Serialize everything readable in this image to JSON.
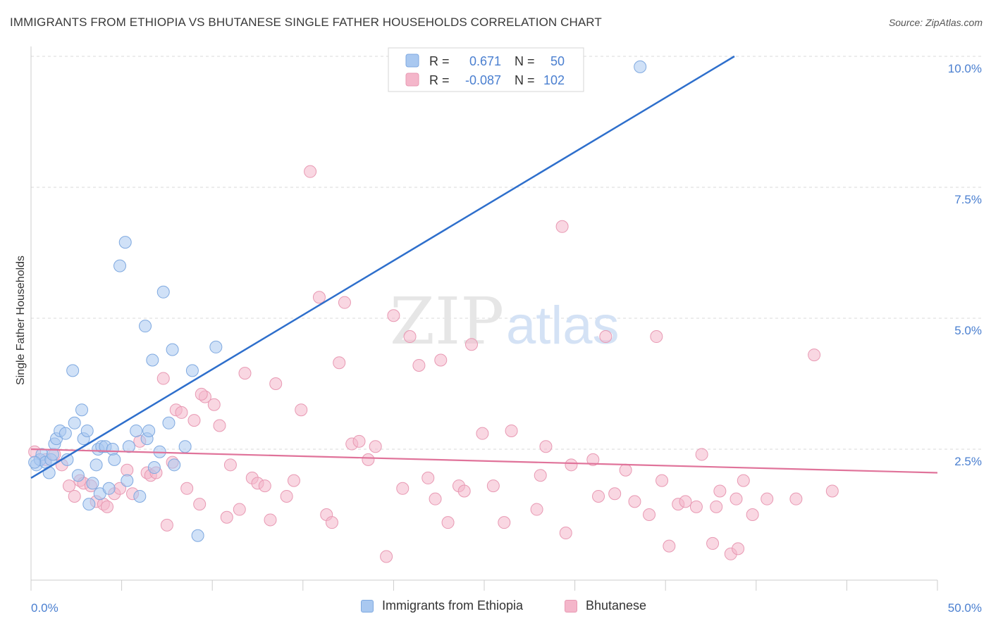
{
  "header": {
    "title": "IMMIGRANTS FROM ETHIOPIA VS BHUTANESE SINGLE FATHER HOUSEHOLDS CORRELATION CHART",
    "source": "Source: ZipAtlas.com"
  },
  "watermark": {
    "zip": "ZIP",
    "atlas": "atlas"
  },
  "colors": {
    "blue": "#4a7fd0",
    "blue_fill": "#a9c8f0",
    "blue_line": "#2e6fcc",
    "pink_fill": "#f4b6ca",
    "pink_line": "#e0739a",
    "grid": "#d9d9d9"
  },
  "legend_top": {
    "rows": [
      {
        "r_label": "R =",
        "r_value": "0.671",
        "n_label": "N =",
        "n_value": "50"
      },
      {
        "r_label": "R =",
        "r_value": "-0.087",
        "n_label": "N =",
        "n_value": "102"
      }
    ]
  },
  "legend_bottom": {
    "items": [
      {
        "label": "Immigrants from Ethiopia"
      },
      {
        "label": "Bhutanese"
      }
    ]
  },
  "chart_data": {
    "type": "scatter",
    "title": "IMMIGRANTS FROM ETHIOPIA VS BHUTANESE SINGLE FATHER HOUSEHOLDS CORRELATION CHART",
    "xlabel": "",
    "ylabel": "Single Father Households",
    "xlim": [
      0,
      50
    ],
    "ylim": [
      0,
      10
    ],
    "x_tick_labels": {
      "min": "0.0%",
      "max": "50.0%"
    },
    "y_ticks": [
      2.5,
      5.0,
      7.5,
      10.0
    ],
    "y_tick_labels": [
      "2.5%",
      "5.0%",
      "7.5%",
      "10.0%"
    ],
    "grid": true,
    "legend_position": "top-center",
    "series": [
      {
        "name": "Immigrants from Ethiopia",
        "color": "#a9c8f0",
        "trend": {
          "x": [
            0,
            38.8
          ],
          "y": [
            1.95,
            10.0
          ]
        },
        "points": [
          [
            0.3,
            2.2
          ],
          [
            0.5,
            2.3
          ],
          [
            0.6,
            2.4
          ],
          [
            0.8,
            2.25
          ],
          [
            1.0,
            2.05
          ],
          [
            1.1,
            2.3
          ],
          [
            1.2,
            2.4
          ],
          [
            1.3,
            2.6
          ],
          [
            1.4,
            2.7
          ],
          [
            1.6,
            2.85
          ],
          [
            1.9,
            2.8
          ],
          [
            2.0,
            2.3
          ],
          [
            2.3,
            4.0
          ],
          [
            2.4,
            3.0
          ],
          [
            2.6,
            2.0
          ],
          [
            2.8,
            3.25
          ],
          [
            2.9,
            2.7
          ],
          [
            3.1,
            2.85
          ],
          [
            3.2,
            1.45
          ],
          [
            3.4,
            1.85
          ],
          [
            3.6,
            2.2
          ],
          [
            3.7,
            2.5
          ],
          [
            3.8,
            1.65
          ],
          [
            3.9,
            2.55
          ],
          [
            4.1,
            2.55
          ],
          [
            4.3,
            1.75
          ],
          [
            4.5,
            2.5
          ],
          [
            4.6,
            2.3
          ],
          [
            4.9,
            6.0
          ],
          [
            5.2,
            6.45
          ],
          [
            5.3,
            1.9
          ],
          [
            5.4,
            2.55
          ],
          [
            5.8,
            2.85
          ],
          [
            6.0,
            1.6
          ],
          [
            6.3,
            4.85
          ],
          [
            6.4,
            2.7
          ],
          [
            6.5,
            2.85
          ],
          [
            6.7,
            4.2
          ],
          [
            6.8,
            2.15
          ],
          [
            7.1,
            2.45
          ],
          [
            7.3,
            5.5
          ],
          [
            7.6,
            3.0
          ],
          [
            7.8,
            4.4
          ],
          [
            7.9,
            2.2
          ],
          [
            8.5,
            2.55
          ],
          [
            8.9,
            4.0
          ],
          [
            9.2,
            0.85
          ],
          [
            10.2,
            4.45
          ],
          [
            33.6,
            9.8
          ],
          [
            0.2,
            2.25
          ]
        ]
      },
      {
        "name": "Bhutanese",
        "color": "#f4b6ca",
        "trend": {
          "x": [
            0,
            50
          ],
          "y": [
            2.5,
            2.05
          ]
        },
        "points": [
          [
            0.2,
            2.45
          ],
          [
            0.8,
            2.3
          ],
          [
            1.3,
            2.4
          ],
          [
            1.7,
            2.2
          ],
          [
            2.1,
            1.8
          ],
          [
            2.4,
            1.6
          ],
          [
            2.7,
            1.9
          ],
          [
            2.9,
            1.85
          ],
          [
            3.3,
            1.8
          ],
          [
            3.6,
            1.5
          ],
          [
            4.0,
            1.45
          ],
          [
            4.2,
            1.4
          ],
          [
            4.6,
            1.65
          ],
          [
            4.9,
            1.75
          ],
          [
            5.3,
            2.1
          ],
          [
            5.6,
            1.65
          ],
          [
            6.0,
            2.65
          ],
          [
            6.4,
            2.05
          ],
          [
            6.6,
            2.0
          ],
          [
            6.9,
            2.05
          ],
          [
            7.3,
            3.85
          ],
          [
            7.5,
            1.05
          ],
          [
            7.8,
            2.25
          ],
          [
            8.0,
            3.25
          ],
          [
            8.3,
            3.2
          ],
          [
            8.6,
            1.75
          ],
          [
            9.0,
            3.05
          ],
          [
            9.3,
            1.45
          ],
          [
            9.6,
            3.5
          ],
          [
            10.1,
            3.35
          ],
          [
            10.4,
            2.95
          ],
          [
            10.8,
            1.2
          ],
          [
            11.0,
            2.2
          ],
          [
            11.5,
            1.35
          ],
          [
            11.8,
            3.95
          ],
          [
            12.2,
            1.95
          ],
          [
            12.5,
            1.85
          ],
          [
            12.9,
            1.8
          ],
          [
            13.2,
            1.15
          ],
          [
            13.5,
            3.75
          ],
          [
            14.1,
            1.6
          ],
          [
            14.5,
            1.9
          ],
          [
            14.9,
            3.25
          ],
          [
            15.4,
            7.8
          ],
          [
            15.9,
            5.4
          ],
          [
            16.3,
            1.25
          ],
          [
            16.6,
            1.1
          ],
          [
            17.0,
            4.15
          ],
          [
            17.3,
            5.3
          ],
          [
            17.7,
            2.6
          ],
          [
            18.1,
            2.65
          ],
          [
            18.6,
            2.3
          ],
          [
            19.0,
            2.55
          ],
          [
            19.6,
            0.45
          ],
          [
            20.0,
            5.05
          ],
          [
            20.5,
            1.75
          ],
          [
            20.9,
            4.65
          ],
          [
            21.4,
            4.1
          ],
          [
            21.9,
            1.95
          ],
          [
            22.3,
            1.55
          ],
          [
            22.6,
            4.2
          ],
          [
            23.0,
            1.1
          ],
          [
            23.6,
            1.8
          ],
          [
            23.9,
            1.7
          ],
          [
            24.3,
            4.5
          ],
          [
            24.9,
            2.8
          ],
          [
            25.5,
            1.8
          ],
          [
            26.1,
            1.1
          ],
          [
            26.5,
            2.85
          ],
          [
            27.9,
            1.35
          ],
          [
            28.1,
            2.0
          ],
          [
            28.4,
            2.55
          ],
          [
            29.3,
            6.75
          ],
          [
            29.5,
            0.9
          ],
          [
            29.8,
            2.2
          ],
          [
            31.0,
            2.3
          ],
          [
            31.3,
            1.6
          ],
          [
            31.7,
            4.65
          ],
          [
            32.2,
            1.65
          ],
          [
            32.8,
            2.1
          ],
          [
            33.3,
            1.5
          ],
          [
            34.1,
            1.25
          ],
          [
            34.5,
            4.65
          ],
          [
            34.8,
            1.9
          ],
          [
            35.2,
            0.65
          ],
          [
            35.7,
            1.45
          ],
          [
            36.1,
            1.5
          ],
          [
            36.7,
            1.4
          ],
          [
            37.0,
            2.4
          ],
          [
            37.6,
            0.7
          ],
          [
            38.0,
            1.7
          ],
          [
            38.6,
            0.5
          ],
          [
            38.9,
            1.55
          ],
          [
            39.3,
            1.9
          ],
          [
            39.8,
            1.25
          ],
          [
            40.6,
            1.55
          ],
          [
            42.2,
            1.55
          ],
          [
            43.2,
            4.3
          ],
          [
            44.2,
            1.7
          ],
          [
            37.8,
            1.4
          ],
          [
            39.0,
            0.6
          ],
          [
            9.4,
            3.55
          ]
        ]
      }
    ]
  }
}
